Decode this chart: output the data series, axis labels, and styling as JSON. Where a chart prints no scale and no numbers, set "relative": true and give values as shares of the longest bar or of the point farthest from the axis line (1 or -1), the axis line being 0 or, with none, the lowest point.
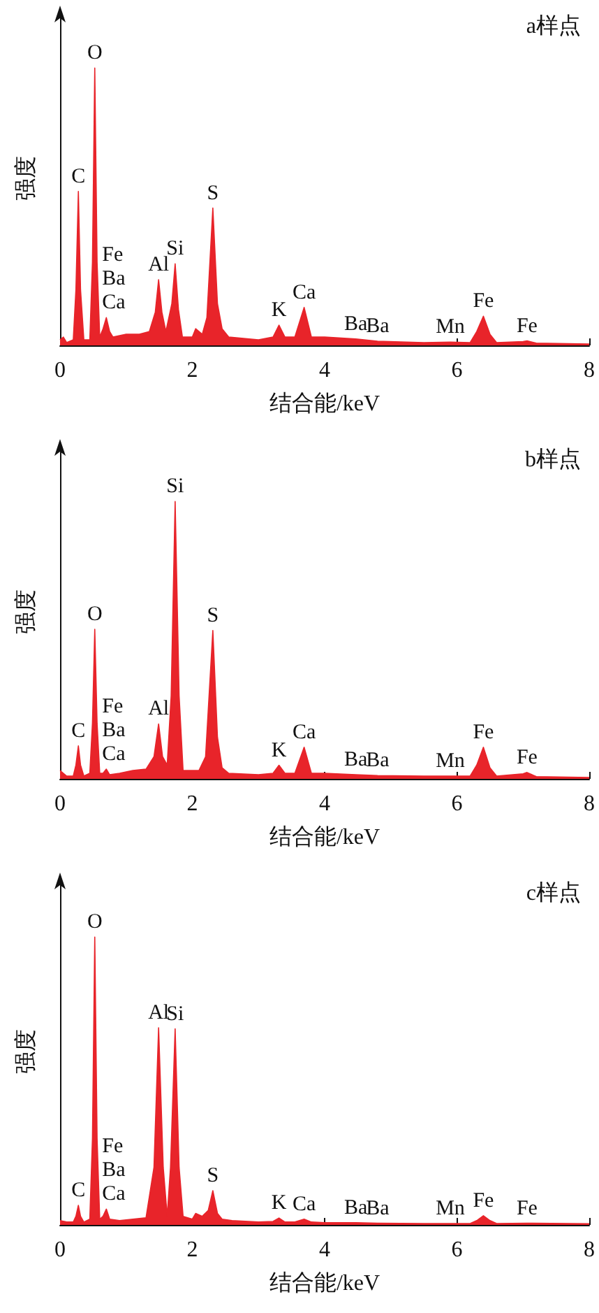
{
  "chart_data": [
    {
      "type": "area",
      "title": "a样点",
      "xlabel": "结合能/keV",
      "ylabel": "强度",
      "relative": true,
      "xlim": [
        0,
        8
      ],
      "xticks": [
        0,
        2,
        4,
        6,
        8
      ],
      "tick_labels": "x",
      "color": "#e8242a",
      "x": [
        0,
        0.05,
        0.1,
        0.2,
        0.24,
        0.277,
        0.31,
        0.36,
        0.45,
        0.49,
        0.525,
        0.56,
        0.6,
        0.65,
        0.7,
        0.75,
        0.8,
        1.0,
        1.2,
        1.35,
        1.44,
        1.49,
        1.54,
        1.6,
        1.69,
        1.74,
        1.79,
        1.85,
        2.0,
        2.05,
        2.15,
        2.22,
        2.31,
        2.38,
        2.45,
        2.55,
        3.0,
        3.22,
        3.31,
        3.4,
        3.55,
        3.69,
        3.8,
        4.0,
        4.47,
        4.8,
        5.5,
        5.9,
        6.2,
        6.3,
        6.4,
        6.5,
        6.6,
        7.0,
        7.06,
        7.2,
        8
      ],
      "values": [
        0.02,
        0.03,
        0.01,
        0.02,
        0.2,
        0.555,
        0.2,
        0.02,
        0.02,
        0.3,
        1,
        0.3,
        0.03,
        0.06,
        0.1,
        0.05,
        0.03,
        0.04,
        0.04,
        0.05,
        0.12,
        0.237,
        0.12,
        0.05,
        0.15,
        0.294,
        0.13,
        0.03,
        0.03,
        0.06,
        0.04,
        0.1,
        0.495,
        0.15,
        0.06,
        0.03,
        0.02,
        0.03,
        0.073,
        0.03,
        0.03,
        0.137,
        0.03,
        0.03,
        0.023,
        0.015,
        0.01,
        0.012,
        0.01,
        0.05,
        0.105,
        0.04,
        0.01,
        0.014,
        0.016,
        0.008,
        0.005
      ],
      "annotations": [
        {
          "text": "C",
          "x": 0.277,
          "y": 0.555
        },
        {
          "text": "O",
          "x": 0.525,
          "y": 1
        },
        {
          "text": "Fe\nBa\nCa",
          "x": 0.7,
          "y": 0.1
        },
        {
          "text": "Al",
          "x": 1.49,
          "y": 0.237
        },
        {
          "text": "Si",
          "x": 1.74,
          "y": 0.294
        },
        {
          "text": "S",
          "x": 2.31,
          "y": 0.495
        },
        {
          "text": "K",
          "x": 3.31,
          "y": 0.073
        },
        {
          "text": "Ca",
          "x": 3.69,
          "y": 0.137
        },
        {
          "text": "Ba",
          "x": 4.47,
          "y": 0.023
        },
        {
          "text": "Ba",
          "x": 4.8,
          "y": 0.015
        },
        {
          "text": "Mn",
          "x": 5.9,
          "y": 0.012
        },
        {
          "text": "Fe",
          "x": 6.4,
          "y": 0.105
        },
        {
          "text": "Fe",
          "x": 7.06,
          "y": 0.016
        }
      ]
    },
    {
      "type": "area",
      "title": "b样点",
      "xlabel": "结合能/keV",
      "ylabel": "强度",
      "relative": true,
      "xlim": [
        0,
        8
      ],
      "xticks": [
        0,
        2,
        4,
        6,
        8
      ],
      "tick_labels": "x",
      "color": "#e8242a",
      "x": [
        0,
        0.05,
        0.1,
        0.2,
        0.24,
        0.277,
        0.31,
        0.36,
        0.45,
        0.49,
        0.525,
        0.56,
        0.6,
        0.65,
        0.7,
        0.75,
        0.9,
        1.1,
        1.3,
        1.42,
        1.49,
        1.55,
        1.62,
        1.68,
        1.74,
        1.8,
        1.86,
        2.0,
        2.1,
        2.2,
        2.31,
        2.38,
        2.45,
        2.55,
        3.0,
        3.22,
        3.31,
        3.4,
        3.55,
        3.69,
        3.8,
        4.0,
        4.47,
        4.8,
        5.5,
        5.9,
        6.2,
        6.3,
        6.4,
        6.5,
        6.6,
        7.0,
        7.06,
        7.2,
        8
      ],
      "values": [
        0.03,
        0.02,
        0.01,
        0.01,
        0.05,
        0.119,
        0.05,
        0.01,
        0.02,
        0.2,
        0.539,
        0.2,
        0.02,
        0.02,
        0.035,
        0.015,
        0.02,
        0.03,
        0.035,
        0.08,
        0.198,
        0.08,
        0.05,
        0.3,
        1,
        0.3,
        0.03,
        0.03,
        0.03,
        0.08,
        0.535,
        0.15,
        0.04,
        0.02,
        0.015,
        0.02,
        0.049,
        0.02,
        0.02,
        0.114,
        0.02,
        0.02,
        0.015,
        0.012,
        0.01,
        0.01,
        0.01,
        0.05,
        0.114,
        0.04,
        0.01,
        0.018,
        0.023,
        0.008,
        0.005
      ],
      "annotations": [
        {
          "text": "C",
          "x": 0.277,
          "y": 0.119
        },
        {
          "text": "O",
          "x": 0.525,
          "y": 0.539
        },
        {
          "text": "Fe\nBa\nCa",
          "x": 0.7,
          "y": 0.035
        },
        {
          "text": "Al",
          "x": 1.49,
          "y": 0.198
        },
        {
          "text": "Si",
          "x": 1.74,
          "y": 1
        },
        {
          "text": "S",
          "x": 2.31,
          "y": 0.535
        },
        {
          "text": "K",
          "x": 3.31,
          "y": 0.049
        },
        {
          "text": "Ca",
          "x": 3.69,
          "y": 0.114
        },
        {
          "text": "Ba",
          "x": 4.47,
          "y": 0.015
        },
        {
          "text": "Ba",
          "x": 4.8,
          "y": 0.012
        },
        {
          "text": "Mn",
          "x": 5.9,
          "y": 0.01
        },
        {
          "text": "Fe",
          "x": 6.4,
          "y": 0.114
        },
        {
          "text": "Fe",
          "x": 7.06,
          "y": 0.023
        }
      ]
    },
    {
      "type": "area",
      "title": "c样点",
      "xlabel": "结合能/keV",
      "ylabel": "强度",
      "relative": true,
      "xlim": [
        0,
        8
      ],
      "xticks": [
        0,
        2,
        4,
        6,
        8
      ],
      "tick_labels": "x",
      "color": "#e8242a",
      "x": [
        0,
        0.1,
        0.2,
        0.24,
        0.277,
        0.31,
        0.36,
        0.45,
        0.49,
        0.525,
        0.56,
        0.6,
        0.65,
        0.7,
        0.75,
        0.9,
        1.1,
        1.3,
        1.42,
        1.49,
        1.56,
        1.62,
        1.67,
        1.74,
        1.8,
        1.86,
        2.0,
        2.05,
        2.15,
        2.24,
        2.31,
        2.38,
        2.45,
        2.6,
        3.0,
        3.22,
        3.31,
        3.4,
        3.55,
        3.69,
        3.8,
        4.0,
        4.47,
        4.8,
        5.5,
        5.9,
        6.2,
        6.3,
        6.4,
        6.5,
        6.6,
        7.06,
        8
      ],
      "values": [
        0.015,
        0.01,
        0.01,
        0.03,
        0.068,
        0.03,
        0.01,
        0.02,
        0.3,
        1,
        0.3,
        0.02,
        0.03,
        0.055,
        0.02,
        0.015,
        0.02,
        0.025,
        0.2,
        0.685,
        0.2,
        0.03,
        0.2,
        0.681,
        0.2,
        0.03,
        0.02,
        0.04,
        0.03,
        0.05,
        0.119,
        0.04,
        0.02,
        0.015,
        0.01,
        0.012,
        0.024,
        0.01,
        0.01,
        0.02,
        0.01,
        0.008,
        0.008,
        0.006,
        0.005,
        0.005,
        0.005,
        0.015,
        0.032,
        0.015,
        0.005,
        0.006,
        0.004
      ],
      "annotations": [
        {
          "text": "C",
          "x": 0.277,
          "y": 0.068
        },
        {
          "text": "O",
          "x": 0.525,
          "y": 1
        },
        {
          "text": "Fe\nBa\nCa",
          "x": 0.7,
          "y": 0.055
        },
        {
          "text": "Al",
          "x": 1.49,
          "y": 0.685
        },
        {
          "text": "Si",
          "x": 1.74,
          "y": 0.681
        },
        {
          "text": "S",
          "x": 2.31,
          "y": 0.119
        },
        {
          "text": "K",
          "x": 3.31,
          "y": 0.024
        },
        {
          "text": "Ca",
          "x": 3.69,
          "y": 0.02
        },
        {
          "text": "Ba",
          "x": 4.47,
          "y": 0.008
        },
        {
          "text": "Ba",
          "x": 4.8,
          "y": 0.006
        },
        {
          "text": "Mn",
          "x": 5.9,
          "y": 0.005
        },
        {
          "text": "Fe",
          "x": 6.4,
          "y": 0.032
        },
        {
          "text": "Fe",
          "x": 7.06,
          "y": 0.006
        }
      ]
    }
  ]
}
